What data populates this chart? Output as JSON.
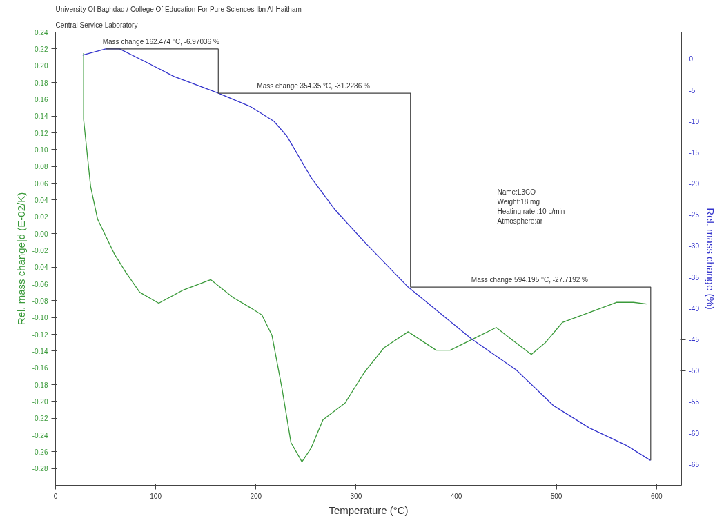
{
  "chart_data": {
    "type": "line",
    "title": "University Of Baghdad / College Of Education For Pure Sciences Ibn Al-Haitham",
    "subtitle": "Central Service Laboratory",
    "xlabel": "Temperature (°C)",
    "ylabel": "Rel. mass change|d (E-02/K)",
    "y2label": "Rel. mass change (%)",
    "annotations": [
      "Mass change 162.474 °C,  -6.97036 %",
      "Mass change 354.35 °C,  -31.2286 %",
      "Mass change 594.195 °C,  -27.7192 %",
      "Name:L3CO",
      "Weight:18 mg",
      "Heating rate :10 c/min",
      "Atmosphere:ar"
    ],
    "series": [
      {
        "color": "#3a9a3a",
        "x": [
          28,
          28,
          35,
          42,
          59,
          70,
          84,
          103,
          128,
          155,
          177,
          194,
          206,
          216,
          226,
          235,
          246,
          255,
          267,
          279,
          289,
          308,
          328,
          352,
          380,
          394,
          416,
          440,
          455,
          475,
          489,
          506,
          533,
          560,
          577,
          590
        ],
        "values": [
          0.215,
          0.136,
          0.056,
          0.017,
          -0.025,
          -0.046,
          -0.07,
          -0.083,
          -0.067,
          -0.055,
          -0.076,
          -0.088,
          -0.097,
          -0.121,
          -0.184,
          -0.249,
          -0.272,
          -0.256,
          -0.222,
          -0.211,
          -0.202,
          -0.166,
          -0.136,
          -0.117,
          -0.139,
          -0.139,
          -0.126,
          -0.112,
          -0.126,
          -0.144,
          -0.13,
          -0.106,
          -0.094,
          -0.082,
          -0.082,
          -0.084
        ]
      },
      {
        "color": "#3333cc",
        "axis": "y2",
        "x": [
          27,
          50,
          64,
          89,
          118,
          161,
          194,
          218,
          231,
          255,
          279,
          308,
          352,
          416,
          460,
          497,
          533,
          570,
          594
        ],
        "values": [
          0.6,
          1.6,
          1.6,
          -0.4,
          -2.8,
          -5.4,
          -7.6,
          -10.0,
          -12.4,
          -19.0,
          -24.2,
          -29.3,
          -36.6,
          -45.0,
          -49.9,
          -55.6,
          -59.2,
          -62.0,
          -64.4
        ]
      },
      {
        "type": "step",
        "color": "#404040",
        "axis": "y2",
        "x": [
          50,
          162.474,
          354.35,
          594.195
        ],
        "values": [
          1.6,
          -5.5,
          -36.6,
          -64.4
        ]
      }
    ],
    "xlim": [
      0,
      625
    ],
    "xticks": [
      0,
      100,
      200,
      300,
      400,
      500,
      600
    ],
    "ylim": [
      -0.3,
      0.24
    ],
    "yticks": [
      -0.28,
      -0.26,
      -0.24,
      -0.22,
      {
        "value": -0.2,
        "label": "-0.20"
      },
      -0.18,
      -0.16,
      -0.14,
      -0.12,
      {
        "value": -0.1,
        "label": "-0.10"
      },
      -0.08,
      -0.06,
      -0.04,
      -0.02,
      {
        "value": 0,
        "label": "0.00"
      },
      0.02,
      0.04,
      0.06,
      0.08,
      {
        "value": 0.1,
        "label": "0.10"
      },
      0.12,
      0.14,
      0.16,
      0.18,
      {
        "value": 0.2,
        "label": "0.20"
      },
      0.22,
      0.24
    ],
    "y2lim": [
      -68.4,
      4.3
    ],
    "y2ticks": [
      -65,
      -60,
      -55,
      -50,
      -45,
      -40,
      -35,
      -30,
      -25,
      -20,
      -15,
      -10,
      -5,
      0
    ],
    "grid": false
  }
}
